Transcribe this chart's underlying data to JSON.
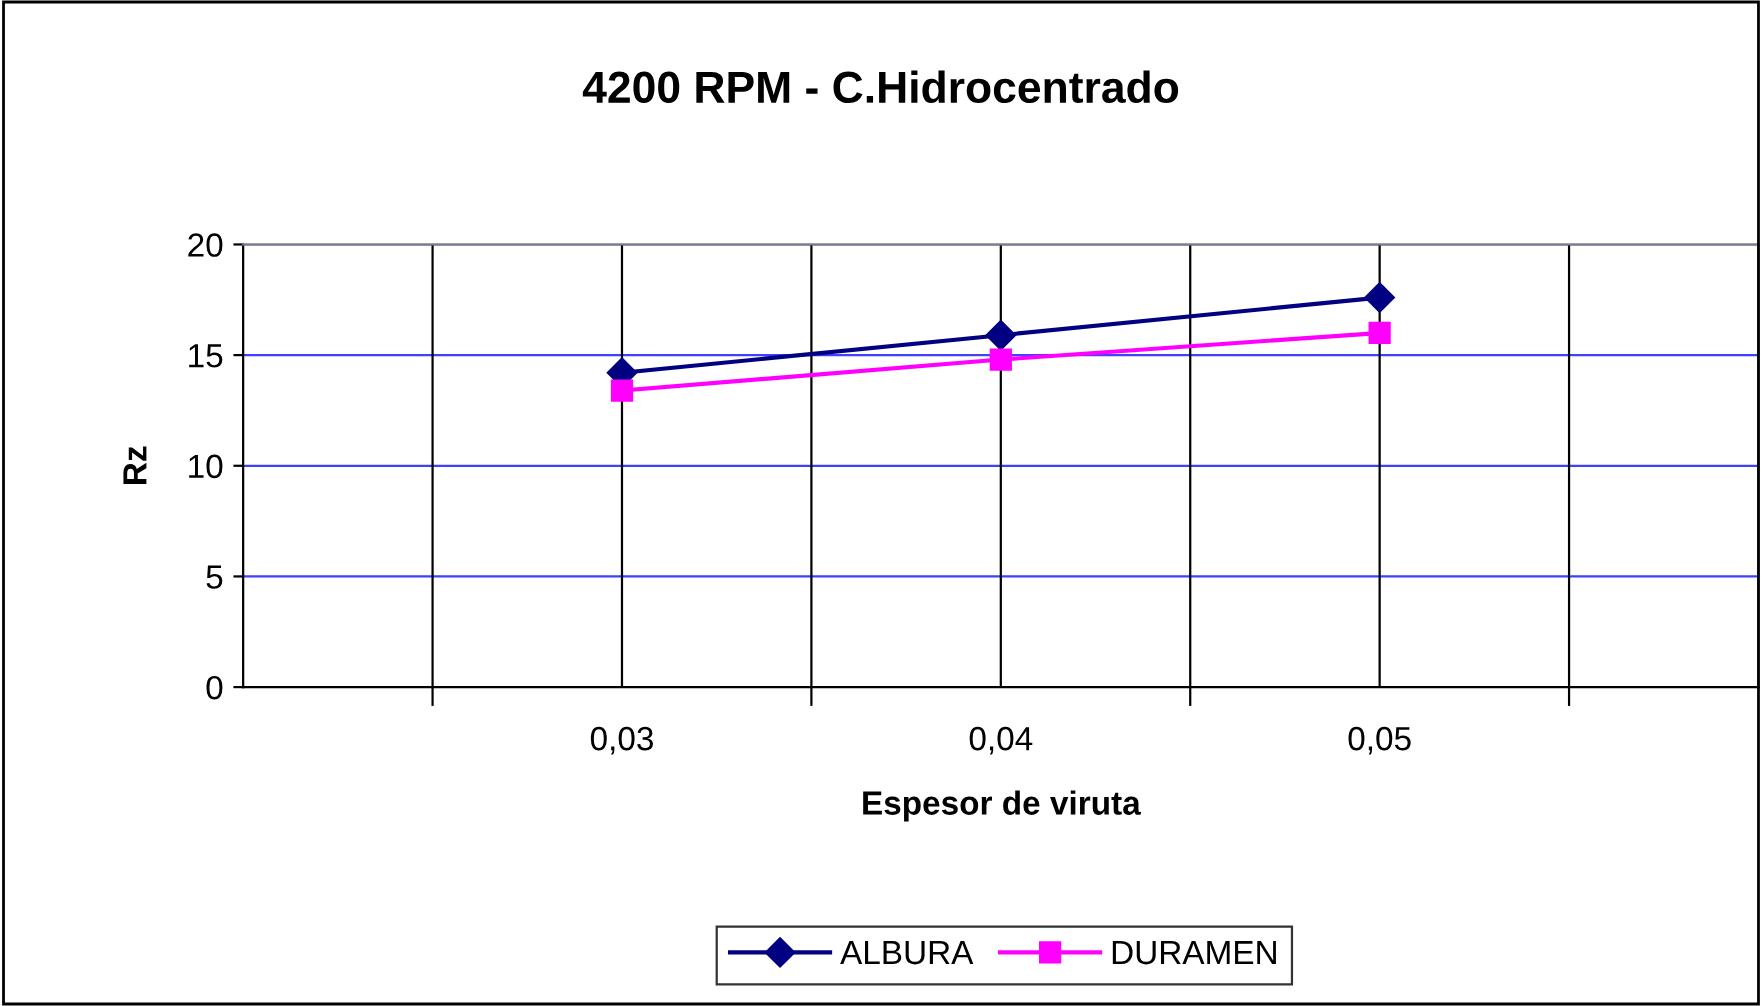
{
  "chart_data": {
    "type": "line",
    "title": "4200 RPM - C.Hidrocentrado",
    "xlabel": "Espesor de viruta",
    "ylabel": "Rz",
    "categories": [
      "0,03",
      "0,04",
      "0,05"
    ],
    "series": [
      {
        "name": "ALBURA",
        "color": "#000080",
        "marker": "diamond",
        "values": [
          14.2,
          15.9,
          17.6
        ]
      },
      {
        "name": "DURAMEN",
        "color": "#ff00ff",
        "marker": "square",
        "values": [
          13.4,
          14.8,
          16.0
        ]
      }
    ],
    "ylim": [
      0,
      20
    ],
    "yticks": [
      0,
      5,
      10,
      15,
      20
    ],
    "grid": true,
    "legend": "bottom",
    "line_style": "solid"
  }
}
